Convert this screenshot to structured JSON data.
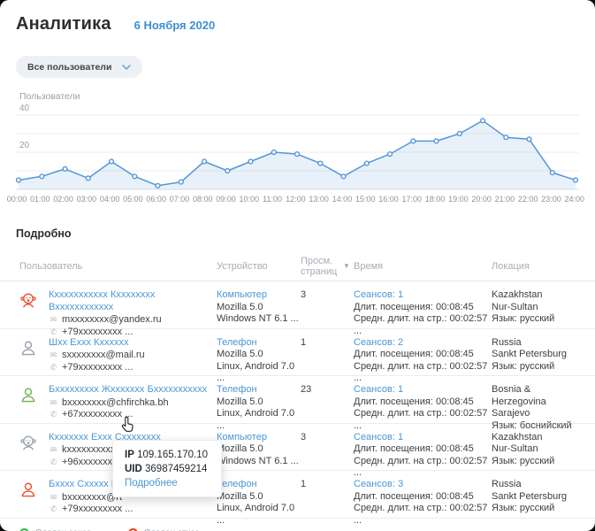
{
  "header": {
    "title": "Аналитика",
    "date": "6 Ноября 2020"
  },
  "filter": {
    "selected": "Все пользователи"
  },
  "chart_data": {
    "type": "area",
    "title": "Пользователи",
    "x": [
      "00:00",
      "01:00",
      "02:00",
      "03:00",
      "04:00",
      "05:00",
      "06:00",
      "07:00",
      "08:00",
      "09:00",
      "10:00",
      "11:00",
      "12:00",
      "13:00",
      "14:00",
      "15:00",
      "16:00",
      "17:00",
      "18:00",
      "19:00",
      "20:00",
      "21:00",
      "22:00",
      "23:00",
      "24:00"
    ],
    "values": [
      5,
      7,
      11,
      6,
      15,
      7,
      2,
      4,
      15,
      10,
      15,
      20,
      19,
      14,
      7,
      14,
      19,
      26,
      26,
      30,
      37,
      28,
      27,
      9,
      5
    ],
    "xlabel": "",
    "ylabel": "Пользователи",
    "ylim": [
      0,
      44
    ],
    "yticks": [
      20,
      40
    ],
    "gridlines": [
      10,
      20,
      30,
      40
    ],
    "grid": "on",
    "legend_position": "none",
    "line_color": "#5596d8",
    "fill_color": "rgba(95,155,216,0.14)"
  },
  "table": {
    "title": "Подробно",
    "columns": [
      "Пользователь",
      "Устройство",
      "Просм. страниц",
      "Время",
      "Локация"
    ],
    "sort_glyph": "▼",
    "rows": [
      {
        "avatar": {
          "type": "baby",
          "color": "#e8502d"
        },
        "name": "Кххххххххххх Кхххххххх Вхххххххххххх",
        "email": "mxxxxxxxx@yandex.ru",
        "phone": "+79xxxxxxxxx ...",
        "device": {
          "type": "Компьютер",
          "agent": "Mozilla 5.0",
          "os": "Windows NT 6.1 ..."
        },
        "pages": "3",
        "time": {
          "sessions": "Сеансов: 1",
          "visit": "Длит. посещения: 00:08:45",
          "avg": "Средн. длит. на стр.: 00:02:57 ..."
        },
        "location": {
          "country": "Kazakhstan",
          "city": "Nur-Sultan",
          "lang": "Язык: русский"
        }
      },
      {
        "avatar": {
          "type": "person",
          "color": "#9aa2ab"
        },
        "name": "Шхх Еххх Кхххххх",
        "email": "sxxxxxxxx@mail.ru",
        "phone": "+79xxxxxxxxx ...",
        "device": {
          "type": "Телефон",
          "agent": "Mozilla 5.0",
          "os": "Linux, Android 7.0 ..."
        },
        "pages": "1",
        "time": {
          "sessions": "Сеансов: 2",
          "visit": "Длит. посещения: 00:08:45",
          "avg": "Средн. длит. на стр.: 00:02:57 ..."
        },
        "location": {
          "country": "Russia",
          "city": "Sankt Petersburg",
          "lang": "Язык: русский"
        }
      },
      {
        "avatar": {
          "type": "person",
          "color": "#6cb44c"
        },
        "name": "Бххххххххх Жххххххх Бххххххххххх",
        "email": "bxxxxxxxx@chfirchka.bh",
        "phone": "+67xxxxxxxxx ...",
        "device": {
          "type": "Телефон",
          "agent": "Mozilla 5.0",
          "os": "Linux, Android 7.0 ..."
        },
        "pages": "23",
        "time": {
          "sessions": "Сеансов: 1",
          "visit": "Длит. посещения: 00:08:45",
          "avg": "Средн. длит. на стр.: 00:02:57 ..."
        },
        "location": {
          "country": "Bosnia & Herzegovina",
          "city": "Sarajevo",
          "lang": "Язык: боснийский"
        }
      },
      {
        "avatar": {
          "type": "baby",
          "color": "#9aa2ab"
        },
        "name": "Кххххххх Еххх Схххххххх",
        "email": "kxxxxxxxxxxxxx@yandex.ru",
        "phone": "+96xxxxxxxxx ...",
        "device": {
          "type": "Компьютер",
          "agent": "Mozilla 5.0",
          "os": "Windows NT 6.1 ..."
        },
        "pages": "3",
        "time": {
          "sessions": "Сеансов: 1",
          "visit": "Длит. посещения: 00:08:45",
          "avg": "Средн. длит. на стр.: 00:02:57 ..."
        },
        "location": {
          "country": "Kazakhstan",
          "city": "Nur-Sultan",
          "lang": "Язык: русский"
        }
      },
      {
        "avatar": {
          "type": "person",
          "color": "#e8502d"
        },
        "name": "Бхххх Сххххх Еххх",
        "email": "bxxxxxxxx@rt",
        "phone": "+79xxxxxxxxx ...",
        "device": {
          "type": "Телефон",
          "agent": "Mozilla 5.0",
          "os": "Linux, Android 7.0 ..."
        },
        "pages": "1",
        "time": {
          "sessions": "Сеансов: 3",
          "visit": "Длит. посещения: 00:08:45",
          "avg": "Средн. длит. на стр.: 00:02:57 ..."
        },
        "location": {
          "country": "Russia",
          "city": "Sankt Petersburg",
          "lang": "Язык: русский"
        }
      }
    ]
  },
  "tooltip": {
    "ip_label": "IP",
    "ip": "109.165.170.10",
    "uid_label": "UID",
    "uid": "36987459214",
    "more": "Подробнее"
  },
  "legend": [
    {
      "label": "Сделан заказ",
      "color": "#38b24a"
    },
    {
      "label": "Сделан отказ",
      "color": "#e8401c"
    }
  ]
}
